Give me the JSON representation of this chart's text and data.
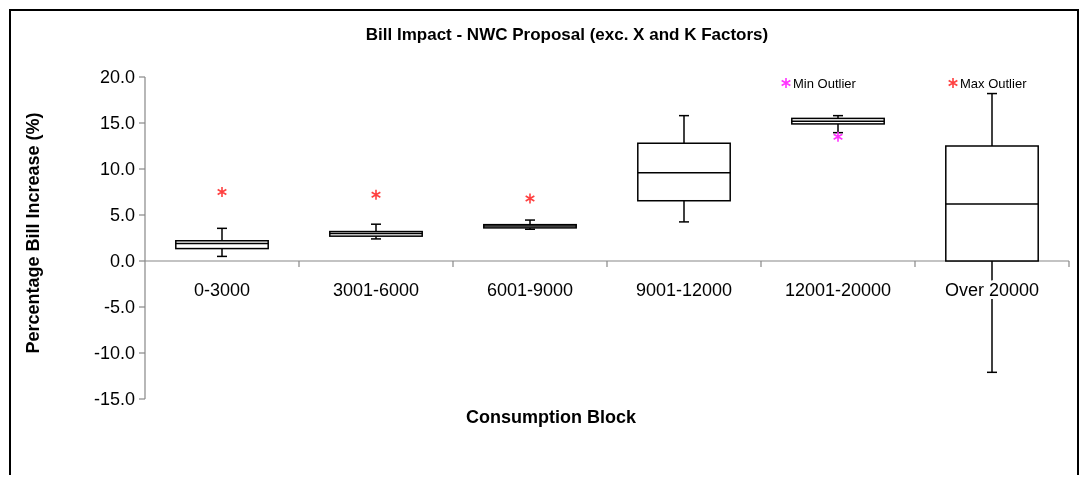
{
  "chart_data": {
    "type": "box",
    "title": "Bill Impact - NWC Proposal (exc. X and K Factors)",
    "xlabel": "Consumption Block",
    "ylabel": "Percentage Bill Increase (%)",
    "categories": [
      "0-3000",
      "3001-6000",
      "6001-9000",
      "9001-12000",
      "12001-20000",
      "Over 20000"
    ],
    "boxes": [
      {
        "low": 0.5,
        "q1": 1.35,
        "median": 1.9,
        "q3": 2.2,
        "high": 3.55
      },
      {
        "low": 2.4,
        "q1": 2.7,
        "median": 3.0,
        "q3": 3.2,
        "high": 4.0
      },
      {
        "low": 3.45,
        "q1": 3.6,
        "median": 3.8,
        "q3": 3.95,
        "high": 4.45
      },
      {
        "low": 4.25,
        "q1": 6.55,
        "median": 9.6,
        "q3": 12.8,
        "high": 15.8
      },
      {
        "low": 13.95,
        "q1": 14.9,
        "median": 15.2,
        "q3": 15.5,
        "high": 15.8
      },
      {
        "low": -12.1,
        "q1": 0.0,
        "median": 6.2,
        "q3": 12.5,
        "high": 18.2
      }
    ],
    "series": [
      {
        "name": "Min Outlier",
        "type": "scatter",
        "color": "#ff33ff",
        "marker": "cross",
        "x": [
          "12001-20000"
        ],
        "values": [
          13.5
        ]
      },
      {
        "name": "Max Outlier",
        "type": "scatter",
        "color": "#ff4040",
        "marker": "cross",
        "x": [
          "0-3000",
          "3001-6000",
          "6001-9000"
        ],
        "values": [
          7.5,
          7.2,
          6.8
        ]
      }
    ],
    "ylim": [
      -15,
      20
    ],
    "yticks": [
      {
        "value": -15,
        "label": "-15.0"
      },
      {
        "value": -10,
        "label": "-10.0"
      },
      {
        "value": -5,
        "label": "-5.0"
      },
      {
        "value": 0,
        "label": "0.0"
      },
      {
        "value": 5,
        "label": "5.0"
      },
      {
        "value": 10,
        "label": "10.0"
      },
      {
        "value": 15,
        "label": "15.0"
      },
      {
        "value": 20,
        "label": "20.0"
      }
    ],
    "grid": false,
    "legend": "top right"
  }
}
